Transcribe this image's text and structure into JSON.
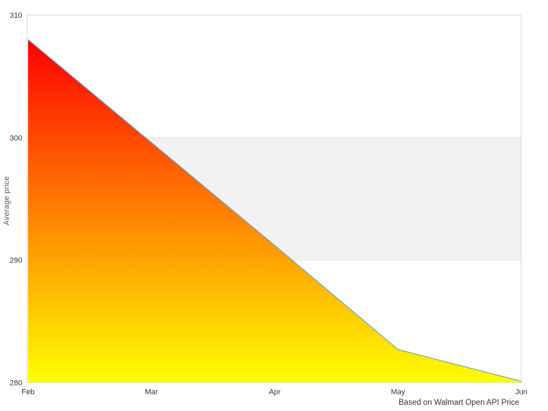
{
  "chart_data": {
    "type": "area",
    "categories": [
      "Feb",
      "Mar",
      "Apr",
      "May",
      "Jun"
    ],
    "values": [
      308,
      299.6,
      291.2,
      282.7,
      280.1
    ],
    "title": "",
    "xlabel": "",
    "ylabel": "Average price",
    "ylim": [
      280,
      310
    ],
    "y_ticks": [
      280,
      290,
      300,
      310
    ],
    "caption": "Based on Walmart Open API Price",
    "legend": "none",
    "grid": "horizontal-only",
    "plot_band": {
      "from": 290,
      "to": 300,
      "color": "#f2f2f2"
    },
    "area_gradient": {
      "top": "#ff0000",
      "bottom": "#ffff00"
    },
    "line_color": "#6ea0d7",
    "border_color": "#d5d5d5",
    "gridline_color": "#e4e4e4",
    "tick_label_color": "#333333",
    "axis_title_color": "#555555"
  }
}
